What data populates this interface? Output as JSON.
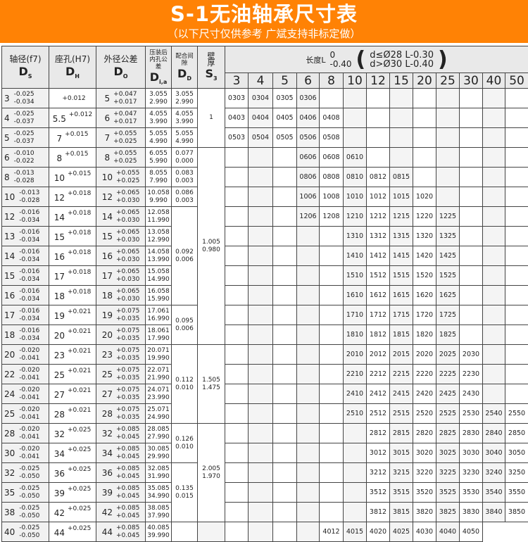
{
  "banner": {
    "title": "S-1无油轴承尺寸表",
    "subtitle": "（以下尺寸仅供参考  广斌支持非标定做）",
    "color": "#ff8205"
  },
  "headers": {
    "ds": {
      "label": "轴径(f7)",
      "sym": "D",
      "sub": "S"
    },
    "dh": {
      "label": "座孔(H7)",
      "sym": "D",
      "sub": "H"
    },
    "do": {
      "label": "外径公差",
      "sym": "D",
      "sub": "O"
    },
    "dia": {
      "label": "压装后内孔公差",
      "sym": "D",
      "sub": "i,a"
    },
    "dd": {
      "label": "配合间隙",
      "sym": "D",
      "sub": "D"
    },
    "s3": {
      "label": "壁厚",
      "sym": "S",
      "sub": "3"
    },
    "length": {
      "label": "长度L",
      "tol_upper": "0",
      "tol_lower": "-0.40",
      "paren_open": "(",
      "paren_close": ")",
      "rule1": "d≤Ø28  L-0.30",
      "rule2": "d>Ø30  L-0.40"
    }
  },
  "lengths": [
    "3",
    "4",
    "5",
    "6",
    "8",
    "10",
    "12",
    "15",
    "20",
    "25",
    "30",
    "40",
    "50"
  ],
  "rows": [
    {
      "ds": "3",
      "ds_u": "-0.025",
      "ds_l": "-0.034",
      "dh": "",
      "dh_t": "+0.012",
      "do": "5",
      "do_u": "+0.047",
      "do_l": "+0.017",
      "dia_u": "3.055",
      "dia_l": "2.990",
      "codes": [
        "0303",
        "0304",
        "0305",
        "0306"
      ]
    },
    {
      "ds": "4",
      "ds_u": "-0.025",
      "ds_l": "-0.037",
      "dh": "5.5",
      "dh_t": "+0.012",
      "do": "6",
      "do_u": "+0.047",
      "do_l": "+0.017",
      "dia_u": "4.055",
      "dia_l": "3.990",
      "codes": [
        "0403",
        "0404",
        "0405",
        "0406",
        "0408"
      ]
    },
    {
      "ds": "5",
      "ds_u": "-0.025",
      "ds_l": "-0.037",
      "dh": "7",
      "dh_t": "+0.015",
      "do": "7",
      "do_u": "+0.055",
      "do_l": "+0.025",
      "dia_u": "5.055",
      "dia_l": "4.990",
      "codes": [
        "0503",
        "0504",
        "0505",
        "0506",
        "0508"
      ]
    },
    {
      "ds": "6",
      "ds_u": "-0.010",
      "ds_l": "-0.022",
      "dh": "8",
      "dh_t": "+0.015",
      "do": "8",
      "do_u": "+0.055",
      "do_l": "+0.025",
      "dia_u": "6.055",
      "dia_l": "5.990",
      "codes": [
        "0606",
        "0608",
        "0610"
      ]
    },
    {
      "ds": "8",
      "ds_u": "-0.013",
      "ds_l": "-0.028",
      "dh": "10",
      "dh_t": "+0.015",
      "do": "10",
      "do_u": "+0.055",
      "do_l": "+0.025",
      "dia_u": "8.055",
      "dia_l": "7.990",
      "codes": [
        "0806",
        "0808",
        "0810",
        "0812",
        "0815"
      ]
    },
    {
      "ds": "10",
      "ds_u": "-0.013",
      "ds_l": "-0.028",
      "dh": "12",
      "dh_t": "+0.018",
      "do": "12",
      "do_u": "+0.065",
      "do_l": "+0.030",
      "dia_u": "10.058",
      "dia_l": "9.990",
      "codes": [
        "1006",
        "1008",
        "1010",
        "1012",
        "1015",
        "1020"
      ]
    },
    {
      "ds": "12",
      "ds_u": "-0.016",
      "ds_l": "-0.034",
      "dh": "14",
      "dh_t": "+0.018",
      "do": "14",
      "do_u": "+0.065",
      "do_l": "+0.030",
      "dia_u": "12.058",
      "dia_l": "11.990",
      "codes": [
        "1206",
        "1208",
        "1210",
        "1212",
        "1215",
        "1220",
        "1225"
      ]
    },
    {
      "ds": "13",
      "ds_u": "-0.016",
      "ds_l": "-0.034",
      "dh": "15",
      "dh_t": "+0.018",
      "do": "15",
      "do_u": "+0.065",
      "do_l": "+0.030",
      "dia_u": "13.058",
      "dia_l": "12.990",
      "codes": [
        "1310",
        "1312",
        "1315",
        "1320",
        "1325"
      ]
    },
    {
      "ds": "14",
      "ds_u": "-0.016",
      "ds_l": "-0.034",
      "dh": "16",
      "dh_t": "+0.018",
      "do": "16",
      "do_u": "+0.065",
      "do_l": "+0.030",
      "dia_u": "14.058",
      "dia_l": "13.990",
      "codes": [
        "1410",
        "1412",
        "1415",
        "1420",
        "1425"
      ]
    },
    {
      "ds": "15",
      "ds_u": "-0.016",
      "ds_l": "-0.034",
      "dh": "17",
      "dh_t": "+0.018",
      "do": "17",
      "do_u": "+0.065",
      "do_l": "+0.030",
      "dia_u": "15.058",
      "dia_l": "14.990",
      "codes": [
        "1510",
        "1512",
        "1515",
        "1520",
        "1525"
      ]
    },
    {
      "ds": "16",
      "ds_u": "-0.016",
      "ds_l": "-0.034",
      "dh": "18",
      "dh_t": "+0.018",
      "do": "18",
      "do_u": "+0.065",
      "do_l": "+0.030",
      "dia_u": "16.058",
      "dia_l": "15.990",
      "codes": [
        "1610",
        "1612",
        "1615",
        "1620",
        "1625"
      ]
    },
    {
      "ds": "17",
      "ds_u": "-0.016",
      "ds_l": "-0.034",
      "dh": "19",
      "dh_t": "+0.021",
      "do": "19",
      "do_u": "+0.075",
      "do_l": "+0.035",
      "dia_u": "17.061",
      "dia_l": "16.990",
      "codes": [
        "1710",
        "1712",
        "1715",
        "1720",
        "1725"
      ]
    },
    {
      "ds": "18",
      "ds_u": "-0.016",
      "ds_l": "-0.034",
      "dh": "20",
      "dh_t": "+0.021",
      "do": "20",
      "do_u": "+0.075",
      "do_l": "+0.035",
      "dia_u": "18.061",
      "dia_l": "17.990",
      "codes": [
        "1810",
        "1812",
        "1815",
        "1820",
        "1825"
      ]
    },
    {
      "ds": "20",
      "ds_u": "-0.020",
      "ds_l": "-0.041",
      "dh": "23",
      "dh_t": "+0.021",
      "do": "23",
      "do_u": "+0.075",
      "do_l": "+0.035",
      "dia_u": "20.071",
      "dia_l": "19.990",
      "codes": [
        "2010",
        "2012",
        "2015",
        "2020",
        "2025",
        "2030"
      ]
    },
    {
      "ds": "22",
      "ds_u": "-0.020",
      "ds_l": "-0.041",
      "dh": "25",
      "dh_t": "+0.021",
      "do": "25",
      "do_u": "+0.075",
      "do_l": "+0.035",
      "dia_u": "22.071",
      "dia_l": "21.990",
      "codes": [
        "2210",
        "2212",
        "2215",
        "2220",
        "2225",
        "2230"
      ]
    },
    {
      "ds": "24",
      "ds_u": "-0.020",
      "ds_l": "-0.041",
      "dh": "27",
      "dh_t": "+0.021",
      "do": "27",
      "do_u": "+0.075",
      "do_l": "+0.035",
      "dia_u": "24.071",
      "dia_l": "23.990",
      "codes": [
        "2410",
        "2412",
        "2415",
        "2420",
        "2425",
        "2430"
      ]
    },
    {
      "ds": "25",
      "ds_u": "-0.020",
      "ds_l": "-0.041",
      "dh": "28",
      "dh_t": "+0.021",
      "do": "28",
      "do_u": "+0.075",
      "do_l": "+0.035",
      "dia_u": "25.071",
      "dia_l": "24.990",
      "codes": [
        "2510",
        "2512",
        "2515",
        "2520",
        "2525",
        "2530",
        "2540",
        "2550"
      ]
    },
    {
      "ds": "28",
      "ds_u": "-0.020",
      "ds_l": "-0.041",
      "dh": "32",
      "dh_t": "+0.025",
      "do": "32",
      "do_u": "+0.085",
      "do_l": "+0.045",
      "dia_u": "28.085",
      "dia_l": "27.990",
      "codes": [
        "2812",
        "2815",
        "2820",
        "2825",
        "2830",
        "2840",
        "2850"
      ]
    },
    {
      "ds": "30",
      "ds_u": "-0.020",
      "ds_l": "-0.041",
      "dh": "34",
      "dh_t": "+0.025",
      "do": "34",
      "do_u": "+0.085",
      "do_l": "+0.045",
      "dia_u": "30.085",
      "dia_l": "29.990",
      "codes": [
        "3012",
        "3015",
        "3020",
        "3025",
        "3030",
        "3040",
        "3050"
      ]
    },
    {
      "ds": "32",
      "ds_u": "-0.025",
      "ds_l": "-0.050",
      "dh": "36",
      "dh_t": "+0.025",
      "do": "36",
      "do_u": "+0.085",
      "do_l": "+0.045",
      "dia_u": "32.085",
      "dia_l": "31.990",
      "codes": [
        "3212",
        "3215",
        "3220",
        "3225",
        "3230",
        "3240",
        "3250"
      ]
    },
    {
      "ds": "35",
      "ds_u": "-0.025",
      "ds_l": "-0.050",
      "dh": "39",
      "dh_t": "+0.025",
      "do": "39",
      "do_u": "+0.085",
      "do_l": "+0.045",
      "dia_u": "35.085",
      "dia_l": "34.990",
      "codes": [
        "3512",
        "3515",
        "3520",
        "3525",
        "3530",
        "3540",
        "3550"
      ]
    },
    {
      "ds": "38",
      "ds_u": "-0.025",
      "ds_l": "-0.050",
      "dh": "42",
      "dh_t": "+0.025",
      "do": "42",
      "do_u": "+0.085",
      "do_l": "+0.045",
      "dia_u": "38.085",
      "dia_l": "37.990",
      "codes": [
        "3812",
        "3815",
        "3820",
        "3825",
        "3830",
        "3840",
        "3850"
      ]
    },
    {
      "ds": "40",
      "ds_u": "-0.025",
      "ds_l": "-0.050",
      "dh": "44",
      "dh_t": "+0.025",
      "do": "44",
      "do_u": "+0.085",
      "do_l": "+0.045",
      "dia_u": "40.085",
      "dia_l": "39.990",
      "codes": [
        "4012",
        "4015",
        "4020",
        "4025",
        "4030",
        "4040",
        "4050"
      ]
    }
  ],
  "dd_groups": [
    {
      "span": 1,
      "upper": "3.055",
      "lower": "2.990"
    },
    {
      "span": 1,
      "upper": "4.055",
      "lower": "3.990"
    },
    {
      "span": 1,
      "upper": "5.055",
      "lower": "4.990"
    },
    {
      "span": 1,
      "upper": "0.077",
      "lower": "0.000"
    },
    {
      "span": 1,
      "upper": "0.083",
      "lower": "0.003"
    },
    {
      "span": 1,
      "upper": "0.086",
      "lower": "0.003"
    },
    {
      "span": 5,
      "upper": "0.092",
      "lower": "0.006"
    },
    {
      "span": 2,
      "upper": "0.095",
      "lower": "0.006"
    },
    {
      "span": 4,
      "upper": "0.112",
      "lower": "0.010"
    },
    {
      "span": 2,
      "upper": "0.126",
      "lower": "0.010"
    },
    {
      "span": 3,
      "upper": "0.135",
      "lower": "0.015"
    }
  ],
  "s3_groups": [
    {
      "span": 3,
      "upper": "1",
      "lower": ""
    },
    {
      "span": 10,
      "upper": "1.005",
      "lower": "0.980"
    },
    {
      "span": 4,
      "upper": "1.505",
      "lower": "1.475"
    },
    {
      "span": 5,
      "upper": "2.005",
      "lower": "1.970"
    }
  ]
}
